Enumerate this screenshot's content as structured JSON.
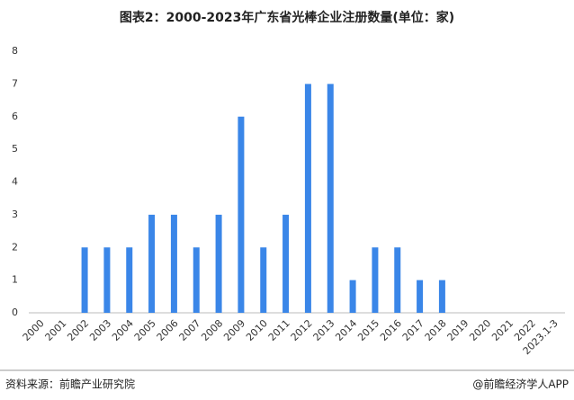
{
  "chart_data": {
    "type": "bar",
    "title": "图表2：2000-2023年广东省光棒企业注册数量(单位：家)",
    "categories": [
      "2000",
      "2001",
      "2002",
      "2003",
      "2004",
      "2005",
      "2006",
      "2007",
      "2008",
      "2009",
      "2010",
      "2011",
      "2012",
      "2013",
      "2014",
      "2015",
      "2016",
      "2017",
      "2018",
      "2019",
      "2020",
      "2021",
      "2022",
      "2023.1-3"
    ],
    "values": [
      0,
      0,
      2,
      2,
      2,
      3,
      3,
      2,
      3,
      6,
      2,
      3,
      7,
      7,
      1,
      2,
      2,
      1,
      1,
      0,
      0,
      0,
      0,
      0
    ],
    "color": "#3a86e8",
    "ylim": [
      0,
      8
    ],
    "yticks": [
      0,
      1,
      2,
      3,
      4,
      5,
      6,
      7,
      8
    ],
    "grid": false,
    "source": "资料来源：前瞻产业研究院",
    "brand": "@前瞻经济学人APP"
  }
}
